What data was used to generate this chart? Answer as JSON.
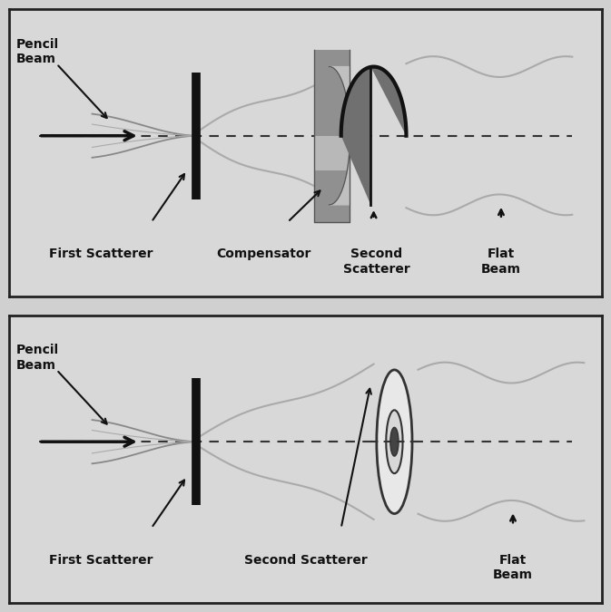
{
  "bg_color": "#d0d0d0",
  "panel_bg": "#d8d8d8",
  "border_color": "#222222",
  "text_color": "#111111",
  "figsize": [
    6.73,
    6.75
  ],
  "dpi": 100,
  "top_panel": {
    "pencil_beam_label": "Pencil\nBeam",
    "first_scatterer_label": "First Scatterer",
    "compensator_label": "Compensator",
    "second_scatterer_label": "Second\nScatterer",
    "flat_beam_label": "Flat\nBeam"
  },
  "bottom_panel": {
    "pencil_beam_label": "Pencil\nBeam",
    "first_scatterer_label": "First Scatterer",
    "second_scatterer_label": "Second Scatterer",
    "flat_beam_label": "Flat\nBeam"
  }
}
